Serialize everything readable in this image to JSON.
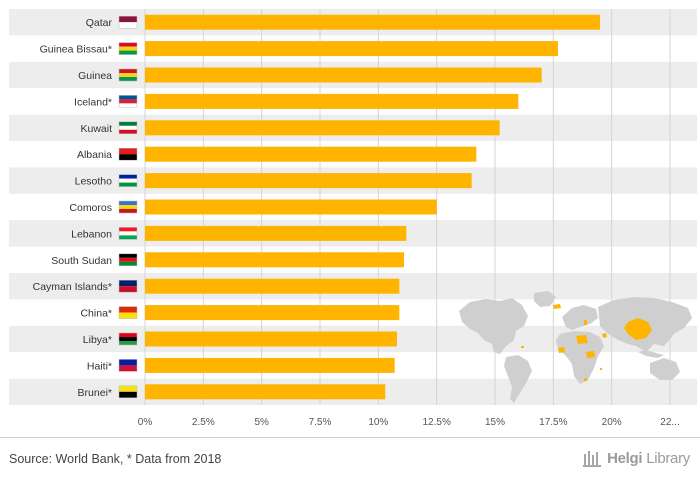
{
  "chart_data": {
    "type": "bar",
    "orientation": "horizontal",
    "title": "",
    "xlabel": "",
    "ylabel": "",
    "categories": [
      "Qatar",
      "Guinea Bissau*",
      "Guinea",
      "Iceland*",
      "Kuwait",
      "Albania",
      "Lesotho",
      "Comoros",
      "Lebanon",
      "South Sudan",
      "Cayman Islands*",
      "China*",
      "Libya*",
      "Haiti*",
      "Brunei*"
    ],
    "values": [
      19.5,
      17.7,
      17.0,
      16.0,
      15.2,
      14.2,
      14.0,
      12.5,
      11.2,
      11.1,
      10.9,
      10.9,
      10.8,
      10.7,
      10.3
    ],
    "xlim": [
      0,
      22.5
    ],
    "tick_labels": [
      "0%",
      "2.5%",
      "5%",
      "7.5%",
      "10%",
      "12.5%",
      "15%",
      "17.5%",
      "20%",
      "22..."
    ],
    "tick_values": [
      0,
      2.5,
      5,
      7.5,
      10,
      12.5,
      15,
      17.5,
      20,
      22.5
    ],
    "bar_color": "#FFB400",
    "grid": true
  },
  "footer": {
    "source": "Source: World Bank, * Data from 2018",
    "logo_a": "Helgi",
    "logo_b": "Library"
  },
  "colors": {
    "row_band": "#ededed",
    "map_land": "#cfcfcf",
    "map_highlight": "#FFB400"
  }
}
